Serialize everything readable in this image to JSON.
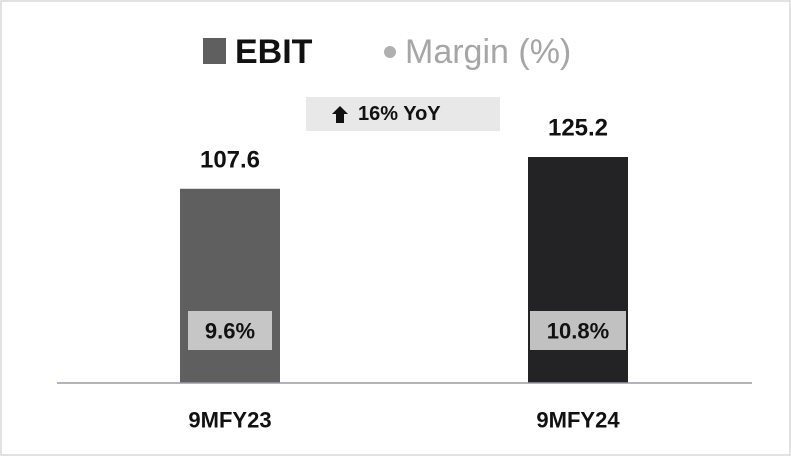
{
  "chart_data": {
    "type": "bar",
    "legend": "top",
    "categories": [
      "9MFY23",
      "9MFY24"
    ],
    "series": [
      {
        "name": "EBIT",
        "color": "#5f5f5f",
        "colors": [
          "#5f5f5f",
          "#232326"
        ],
        "values": [
          107.6,
          125.2
        ]
      },
      {
        "name": "Margin (%)",
        "color": "#b0b0b0",
        "values": [
          9.6,
          10.8
        ],
        "value_labels": [
          "9.6%",
          "10.8%"
        ]
      }
    ],
    "annotations": [
      {
        "text": "16% YoY"
      }
    ]
  }
}
